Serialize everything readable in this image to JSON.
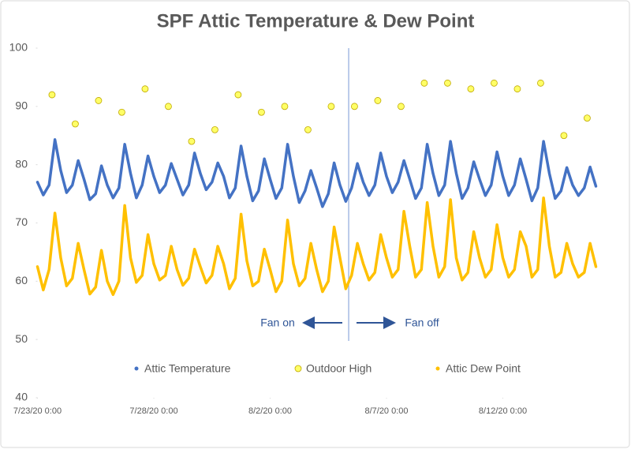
{
  "chart_data": {
    "type": "line",
    "title": "SPF Attic Temperature & Dew Point",
    "xlim": [
      "7/23/20 0:00",
      "8/17/20 0:00"
    ],
    "xticks": [
      "7/23/20 0:00",
      "7/28/20 0:00",
      "8/2/20 0:00",
      "8/7/20 0:00",
      "8/12/20 0:00"
    ],
    "ylim": [
      40,
      100
    ],
    "yticks": [
      40,
      50,
      60,
      70,
      80,
      90,
      100
    ],
    "grid": false,
    "legend": "bottom",
    "marker_x": "8/5/20 9:00",
    "annotations": [
      "Fan on",
      "Fan off"
    ],
    "x": [
      "7/23/20 0:00",
      "7/23/20 6:00",
      "7/23/20 12:00",
      "7/23/20 18:00",
      "7/24/20 0:00",
      "7/24/20 6:00",
      "7/24/20 12:00",
      "7/24/20 18:00",
      "7/25/20 0:00",
      "7/25/20 6:00",
      "7/25/20 12:00",
      "7/25/20 18:00",
      "7/26/20 0:00",
      "7/26/20 6:00",
      "7/26/20 12:00",
      "7/26/20 18:00",
      "7/27/20 0:00",
      "7/27/20 6:00",
      "7/27/20 12:00",
      "7/27/20 18:00",
      "7/28/20 0:00",
      "7/28/20 6:00",
      "7/28/20 12:00",
      "7/28/20 18:00",
      "7/29/20 0:00",
      "7/29/20 6:00",
      "7/29/20 12:00",
      "7/29/20 18:00",
      "7/30/20 0:00",
      "7/30/20 6:00",
      "7/30/20 12:00",
      "7/30/20 18:00",
      "7/31/20 0:00",
      "7/31/20 6:00",
      "7/31/20 12:00",
      "7/31/20 18:00",
      "8/1/20 0:00",
      "8/1/20 6:00",
      "8/1/20 12:00",
      "8/1/20 18:00",
      "8/2/20 0:00",
      "8/2/20 6:00",
      "8/2/20 12:00",
      "8/2/20 18:00",
      "8/3/20 0:00",
      "8/3/20 6:00",
      "8/3/20 12:00",
      "8/3/20 18:00",
      "8/4/20 0:00",
      "8/4/20 6:00",
      "8/4/20 12:00",
      "8/4/20 18:00",
      "8/5/20 0:00",
      "8/5/20 6:00",
      "8/5/20 12:00",
      "8/5/20 18:00",
      "8/6/20 0:00",
      "8/6/20 6:00",
      "8/6/20 12:00",
      "8/6/20 18:00",
      "8/7/20 0:00",
      "8/7/20 6:00",
      "8/7/20 12:00",
      "8/7/20 18:00",
      "8/8/20 0:00",
      "8/8/20 6:00",
      "8/8/20 12:00",
      "8/8/20 18:00",
      "8/9/20 0:00",
      "8/9/20 6:00",
      "8/9/20 12:00",
      "8/9/20 18:00",
      "8/10/20 0:00",
      "8/10/20 6:00",
      "8/10/20 12:00",
      "8/10/20 18:00",
      "8/11/20 0:00",
      "8/11/20 6:00",
      "8/11/20 12:00",
      "8/11/20 18:00",
      "8/12/20 0:00",
      "8/12/20 6:00",
      "8/12/20 12:00",
      "8/12/20 18:00",
      "8/13/20 0:00",
      "8/13/20 6:00",
      "8/13/20 12:00",
      "8/13/20 18:00",
      "8/14/20 0:00",
      "8/14/20 6:00",
      "8/14/20 12:00",
      "8/14/20 18:00",
      "8/15/20 0:00",
      "8/15/20 6:00",
      "8/15/20 12:00",
      "8/15/20 18:00",
      "8/16/20 0:00"
    ],
    "series": [
      {
        "name": "Attic Temperature",
        "color": "#4472c4",
        "style": "line",
        "values": [
          77,
          74.8,
          76.5,
          84.3,
          79,
          75.2,
          76.5,
          80.7,
          77.5,
          74,
          75,
          79.8,
          76.5,
          74.3,
          76,
          83.5,
          78.5,
          74.3,
          76.5,
          81.5,
          78,
          75.2,
          76.5,
          80.2,
          77.5,
          74.8,
          76.5,
          82,
          78.5,
          75.7,
          77,
          80.3,
          78,
          74.3,
          76,
          83.2,
          78,
          73.8,
          75.5,
          81,
          77.5,
          74.2,
          76,
          83.5,
          78,
          73.5,
          75.5,
          79,
          76,
          72.8,
          75,
          80.3,
          76.5,
          73.7,
          76,
          80.2,
          77,
          74.7,
          76.5,
          82,
          78,
          75.2,
          77,
          80.7,
          77.5,
          74.2,
          76,
          83.5,
          78.5,
          74.7,
          76.5,
          84,
          78.5,
          74.2,
          76,
          80.5,
          77.5,
          74.7,
          76.5,
          82.2,
          78,
          74.7,
          76.5,
          81,
          77.5,
          73.8,
          76,
          84,
          78.5,
          74.2,
          75.5,
          79.5,
          76.5,
          74.7,
          76,
          79.6,
          76.3
        ]
      },
      {
        "name": "Outdoor High",
        "color": "#ffff66",
        "style": "marker",
        "x": [
          "7/23/20 15:00",
          "7/24/20 15:00",
          "7/25/20 15:00",
          "7/26/20 15:00",
          "7/27/20 15:00",
          "7/28/20 15:00",
          "7/29/20 15:00",
          "7/30/20 15:00",
          "7/31/20 15:00",
          "8/1/20 15:00",
          "8/2/20 15:00",
          "8/3/20 15:00",
          "8/4/20 15:00",
          "8/5/20 15:00",
          "8/6/20 15:00",
          "8/7/20 15:00",
          "8/8/20 15:00",
          "8/9/20 15:00",
          "8/10/20 15:00",
          "8/11/20 15:00",
          "8/12/20 15:00",
          "8/13/20 15:00",
          "8/14/20 15:00",
          "8/15/20 15:00"
        ],
        "values": [
          92,
          87,
          91,
          89,
          93,
          90,
          84,
          86,
          92,
          89,
          90,
          86,
          90,
          90,
          91,
          90,
          94,
          94,
          93,
          94,
          93,
          94,
          85,
          88
        ]
      },
      {
        "name": "Attic Dew Point",
        "color": "#ffc000",
        "style": "line",
        "values": [
          62.5,
          58.5,
          62,
          71.7,
          64,
          59.2,
          60.5,
          66.5,
          62,
          57.8,
          59,
          65.3,
          60,
          57.7,
          60,
          73,
          64,
          59.8,
          61,
          68,
          63,
          60.2,
          61,
          66,
          62,
          59.3,
          60.5,
          65.5,
          62.5,
          59.7,
          61,
          66,
          63,
          58.7,
          60.5,
          71.5,
          63.5,
          59.2,
          60,
          65.5,
          62,
          58.2,
          60,
          70.5,
          63,
          59.2,
          60.5,
          66.5,
          62,
          58.2,
          60,
          69.3,
          64,
          58.7,
          61,
          66.5,
          63,
          60.2,
          61.5,
          68,
          64,
          60.7,
          62,
          72,
          66,
          60.7,
          62,
          73.5,
          66,
          60.7,
          62.5,
          74,
          64,
          60.2,
          61.5,
          68.5,
          64,
          60.7,
          62,
          69.7,
          64,
          60.7,
          62,
          68.5,
          66,
          60.7,
          62,
          74.3,
          66,
          60.7,
          61.5,
          66.5,
          63,
          60.7,
          61.5,
          66.5,
          62.5
        ]
      }
    ]
  }
}
